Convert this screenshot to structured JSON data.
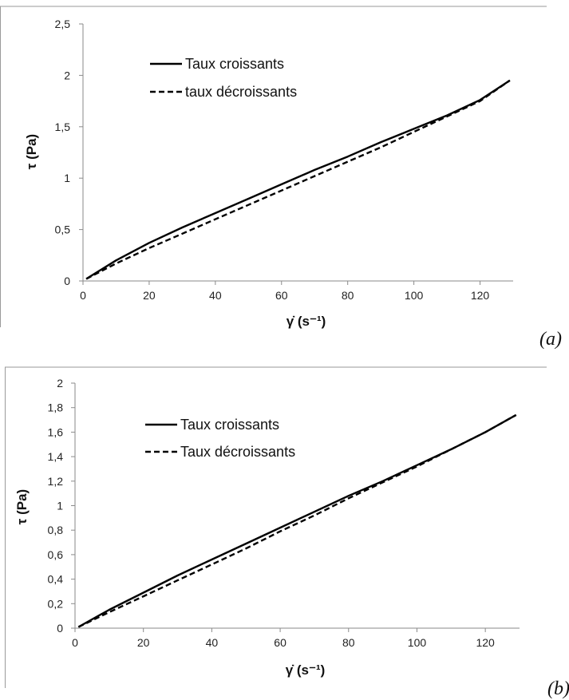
{
  "chart_data": [
    {
      "type": "line",
      "panel_label": "(a)",
      "xlabel": "γ̇ (s⁻¹)",
      "ylabel": "τ (Pa)",
      "xlim": [
        0,
        130
      ],
      "ylim": [
        0,
        2.5
      ],
      "x_ticks": [
        "0",
        "20",
        "40",
        "60",
        "80",
        "100",
        "120"
      ],
      "y_ticks": [
        "0",
        "0,5",
        "1",
        "1,5",
        "2",
        "2,5"
      ],
      "grid": false,
      "legend_position": "top-left",
      "series": [
        {
          "name": "Taux croissants",
          "style": "solid",
          "color": "#000000",
          "x": [
            1,
            10,
            20,
            30,
            40,
            50,
            60,
            70,
            80,
            90,
            100,
            110,
            120,
            129
          ],
          "y": [
            0.02,
            0.2,
            0.37,
            0.52,
            0.66,
            0.8,
            0.94,
            1.08,
            1.21,
            1.35,
            1.48,
            1.61,
            1.76,
            1.95
          ]
        },
        {
          "name": "taux décroissants",
          "style": "dashed",
          "color": "#000000",
          "x": [
            1,
            10,
            20,
            30,
            40,
            50,
            60,
            70,
            80,
            90,
            100,
            110,
            120,
            129
          ],
          "y": [
            0.02,
            0.17,
            0.32,
            0.46,
            0.6,
            0.74,
            0.88,
            1.02,
            1.16,
            1.3,
            1.45,
            1.6,
            1.75,
            1.95
          ]
        }
      ]
    },
    {
      "type": "line",
      "panel_label": "(b)",
      "xlabel": "γ̇ (s⁻¹)",
      "ylabel": "τ (Pa)",
      "xlim": [
        0,
        130
      ],
      "ylim": [
        0,
        2
      ],
      "x_ticks": [
        "0",
        "20",
        "40",
        "60",
        "80",
        "100",
        "120"
      ],
      "y_ticks": [
        "0",
        "0,2",
        "0,4",
        "0,6",
        "0,8",
        "1",
        "1,2",
        "1,4",
        "1,6",
        "1,8",
        "2"
      ],
      "grid": false,
      "legend_position": "top-left",
      "series": [
        {
          "name": "Taux croissants",
          "style": "solid",
          "color": "#000000",
          "x": [
            1,
            10,
            20,
            30,
            40,
            50,
            60,
            70,
            80,
            90,
            100,
            110,
            120,
            129
          ],
          "y": [
            0.01,
            0.15,
            0.29,
            0.43,
            0.56,
            0.69,
            0.82,
            0.95,
            1.08,
            1.2,
            1.33,
            1.46,
            1.6,
            1.74
          ]
        },
        {
          "name": "Taux décroissants",
          "style": "dashed",
          "color": "#000000",
          "x": [
            1,
            10,
            20,
            30,
            40,
            50,
            60,
            70,
            80,
            90,
            100,
            110,
            120,
            129
          ],
          "y": [
            0.01,
            0.13,
            0.26,
            0.39,
            0.52,
            0.65,
            0.79,
            0.92,
            1.06,
            1.19,
            1.32,
            1.46,
            1.6,
            1.74
          ]
        }
      ]
    }
  ]
}
